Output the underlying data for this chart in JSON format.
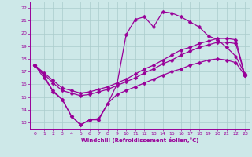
{
  "xlabel": "Windchill (Refroidissement éolien,°C)",
  "background_color": "#cde8e8",
  "grid_color": "#aacccc",
  "line_color": "#990099",
  "ylim": [
    12.5,
    22.5
  ],
  "xlim": [
    -0.5,
    23.5
  ],
  "yticks": [
    13,
    14,
    15,
    16,
    17,
    18,
    19,
    20,
    21,
    22
  ],
  "xticks": [
    0,
    1,
    2,
    3,
    4,
    5,
    6,
    7,
    8,
    9,
    10,
    11,
    12,
    13,
    14,
    15,
    16,
    17,
    18,
    19,
    20,
    21,
    22,
    23
  ],
  "series1_x": [
    0,
    1,
    2,
    3,
    4,
    5,
    6,
    7,
    8,
    9,
    10,
    11,
    12,
    13,
    14,
    15,
    16,
    17,
    18,
    19,
    20,
    21,
    22,
    23
  ],
  "series1_y": [
    17.5,
    16.7,
    15.4,
    14.8,
    13.5,
    12.8,
    13.2,
    13.2,
    14.5,
    16.0,
    19.9,
    21.1,
    21.3,
    20.5,
    21.7,
    21.6,
    21.3,
    20.9,
    20.5,
    19.8,
    19.5,
    18.9,
    18.2,
    16.8
  ],
  "series2_x": [
    0,
    1,
    2,
    3,
    4,
    5,
    6,
    7,
    8,
    9,
    10,
    11,
    12,
    13,
    14,
    15,
    16,
    17,
    18,
    19,
    20,
    21,
    22,
    23
  ],
  "series2_y": [
    17.5,
    16.9,
    16.3,
    15.7,
    15.5,
    15.3,
    15.4,
    15.6,
    15.8,
    16.1,
    16.4,
    16.8,
    17.2,
    17.5,
    17.9,
    18.3,
    18.7,
    18.9,
    19.2,
    19.4,
    19.6,
    19.6,
    19.5,
    16.7
  ],
  "series3_x": [
    0,
    1,
    2,
    3,
    4,
    5,
    6,
    7,
    8,
    9,
    10,
    11,
    12,
    13,
    14,
    15,
    16,
    17,
    18,
    19,
    20,
    21,
    22,
    23
  ],
  "series3_y": [
    17.5,
    16.8,
    16.1,
    15.5,
    15.3,
    15.1,
    15.2,
    15.4,
    15.6,
    15.9,
    16.2,
    16.5,
    16.9,
    17.2,
    17.6,
    17.9,
    18.3,
    18.6,
    18.9,
    19.1,
    19.3,
    19.3,
    19.2,
    16.7
  ],
  "series4_x": [
    0,
    1,
    2,
    3,
    4,
    5,
    6,
    7,
    8,
    9,
    10,
    11,
    12,
    13,
    14,
    15,
    16,
    17,
    18,
    19,
    20,
    21,
    22,
    23
  ],
  "series4_y": [
    17.5,
    16.5,
    15.5,
    14.8,
    13.5,
    12.8,
    13.2,
    13.3,
    14.5,
    15.2,
    15.5,
    15.8,
    16.1,
    16.4,
    16.7,
    17.0,
    17.2,
    17.5,
    17.7,
    17.9,
    18.0,
    17.9,
    17.7,
    16.7
  ]
}
